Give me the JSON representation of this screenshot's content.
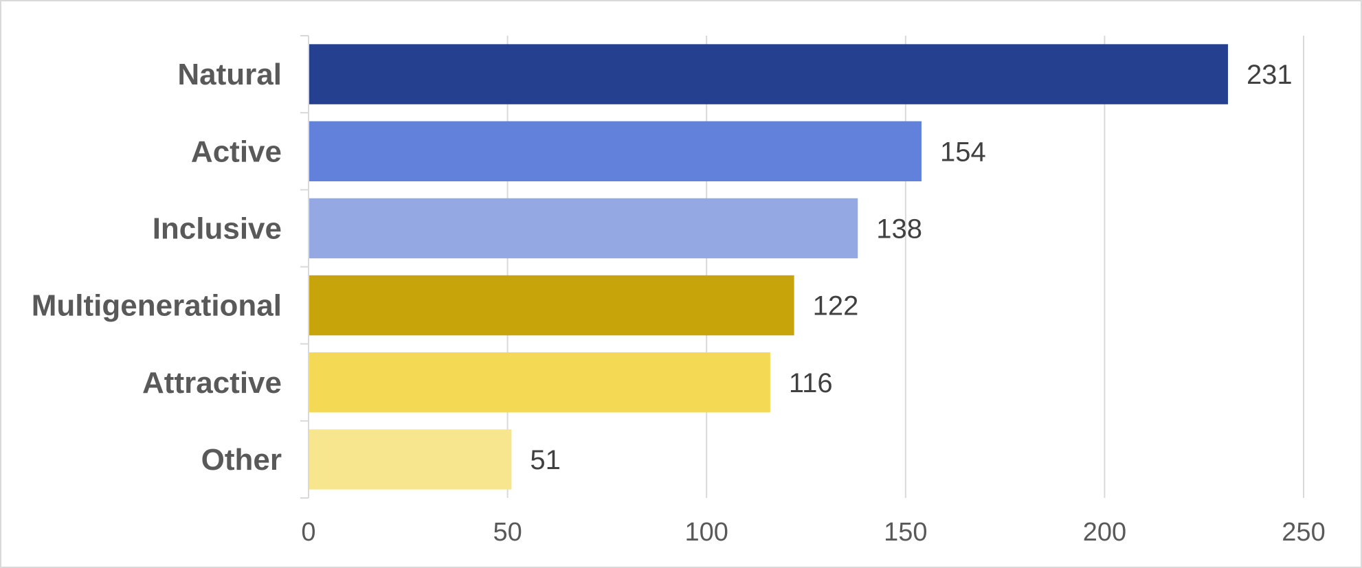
{
  "chart_data": {
    "type": "bar",
    "orientation": "horizontal",
    "categories": [
      "Natural",
      "Active",
      "Inclusive",
      "Multigenerational",
      "Attractive",
      "Other"
    ],
    "values": [
      231,
      154,
      138,
      122,
      116,
      51
    ],
    "colors": [
      "#24408e",
      "#6281da",
      "#94a9e4",
      "#c7a50a",
      "#f4da54",
      "#f7e68e"
    ],
    "xlim": [
      0,
      250
    ],
    "xticks": [
      0,
      50,
      100,
      150,
      200,
      250
    ],
    "grid": true,
    "title": "",
    "xlabel": "",
    "ylabel": "",
    "data_labels": true
  }
}
